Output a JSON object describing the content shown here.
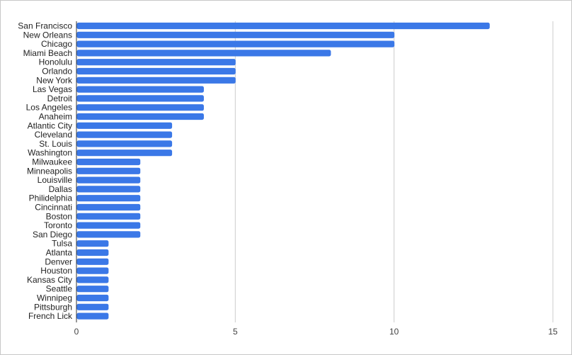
{
  "chart_data": {
    "type": "bar",
    "orientation": "horizontal",
    "title": "",
    "xlabel": "",
    "ylabel": "",
    "categories": [
      "San Francisco",
      "New Orleans",
      "Chicago",
      "Miami Beach",
      "Honolulu",
      "Orlando",
      "New York",
      "Las Vegas",
      "Detroit",
      "Los Angeles",
      "Anaheim",
      "Atlantic City",
      "Cleveland",
      "St. Louis",
      "Washington",
      "Milwaukee",
      "Minneapolis",
      "Louisville",
      "Dallas",
      "Philidelphia",
      "Cincinnati",
      "Boston",
      "Toronto",
      "San Diego",
      "Tulsa",
      "Atlanta",
      "Denver",
      "Houston",
      "Kansas City",
      "Seattle",
      "Winnipeg",
      "Pittsburgh",
      "French Lick"
    ],
    "values": [
      13,
      10,
      10,
      8,
      5,
      5,
      5,
      4,
      4,
      4,
      4,
      3,
      3,
      3,
      3,
      2,
      2,
      2,
      2,
      2,
      2,
      2,
      2,
      2,
      1,
      1,
      1,
      1,
      1,
      1,
      1,
      1,
      1
    ],
    "xlim": [
      0,
      15
    ],
    "xticks": [
      "0",
      "5",
      "10",
      "15"
    ],
    "grid": true,
    "legend": "none",
    "bar_color": "#3b78e7",
    "grid_color": "#cccccc",
    "axis_color": "#333333"
  }
}
